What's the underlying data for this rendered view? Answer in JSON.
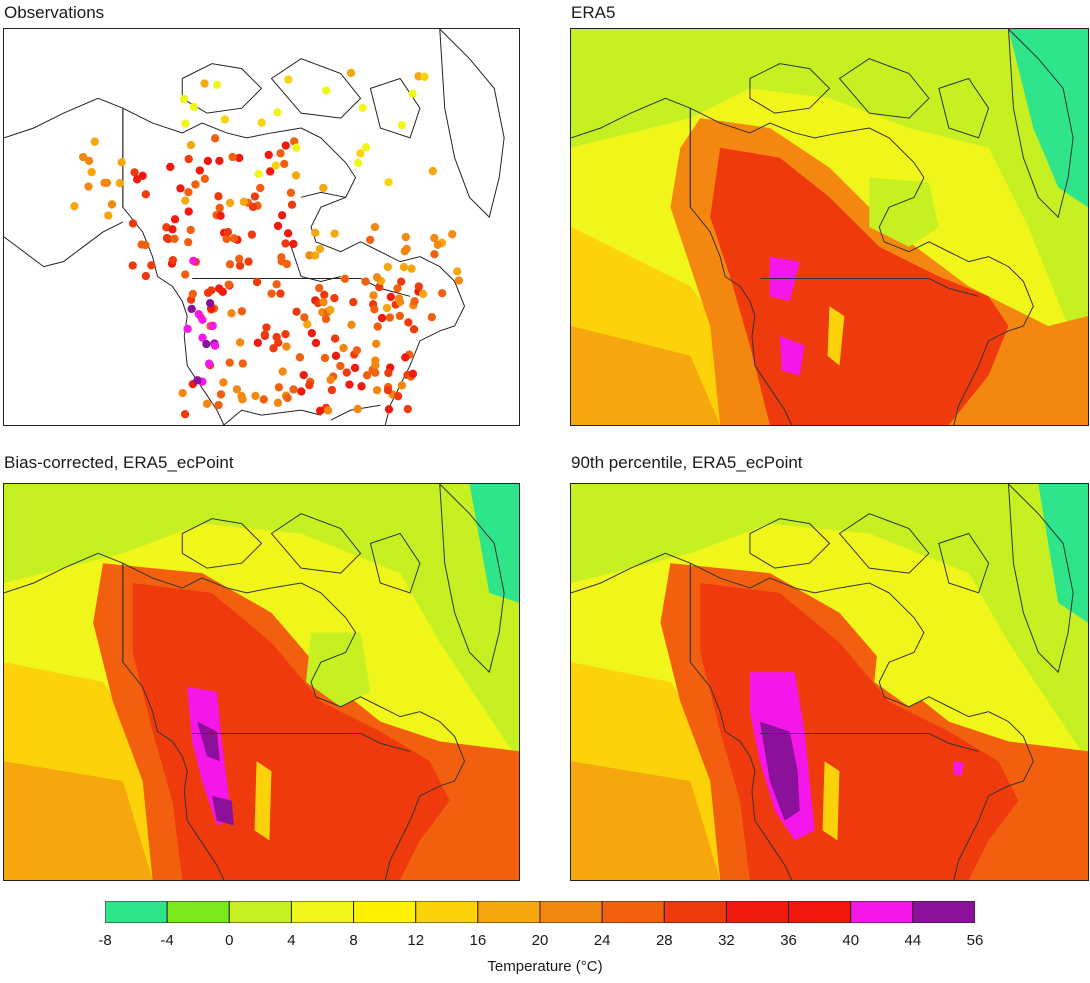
{
  "panels": [
    {
      "id": "obs",
      "title": "Observations",
      "type": "stations"
    },
    {
      "id": "era5",
      "title": "ERA5",
      "type": "field"
    },
    {
      "id": "bias",
      "title": "Bias-corrected, ERA5_ecPoint",
      "type": "field"
    },
    {
      "id": "p90",
      "title": "90th percentile, ERA5_ecPoint",
      "type": "field"
    }
  ],
  "colorbar": {
    "label": "Temperature (°C)",
    "ticks": [
      "-8",
      "-4",
      "0",
      "4",
      "8",
      "12",
      "16",
      "20",
      "24",
      "28",
      "32",
      "36",
      "40",
      "44",
      "56"
    ],
    "colors": [
      "#2ee58c",
      "#7be81c",
      "#c6f021",
      "#f0f51a",
      "#fff200",
      "#fcd20a",
      "#f6a70d",
      "#f4870f",
      "#f2600f",
      "#ef3a0e",
      "#f01a0e",
      "#f2170d",
      "#f516e9",
      "#8b119a"
    ]
  }
}
